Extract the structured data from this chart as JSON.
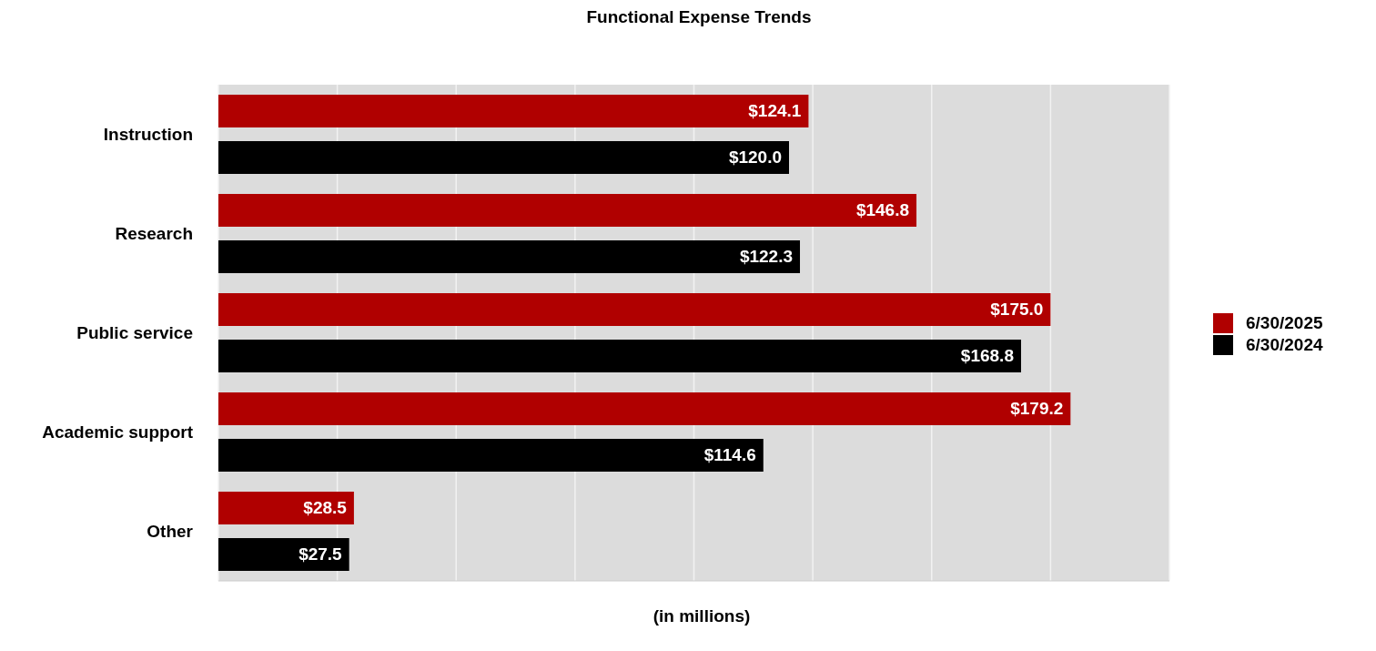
{
  "chart_data": {
    "type": "bar",
    "orientation": "horizontal",
    "title": "Functional Expense Trends",
    "xlabel": "(in millions)",
    "categories": [
      "Instruction",
      "Research",
      "Public service",
      "Academic support",
      "Other"
    ],
    "series": [
      {
        "name": "6/30/2025",
        "color": "#b00000",
        "values": [
          124.1,
          146.8,
          175.0,
          179.2,
          28.5
        ],
        "value_labels": [
          "$124.1",
          "$146.8",
          "$175.0",
          "$179.2",
          "$28.5"
        ]
      },
      {
        "name": "6/30/2024",
        "color": "#000000",
        "values": [
          120.0,
          122.3,
          168.8,
          114.6,
          27.5
        ],
        "value_labels": [
          "$120.0",
          "$122.3",
          "$168.8",
          "$114.6",
          "$27.5"
        ]
      }
    ],
    "xlim": [
      0,
      200
    ],
    "grid": "x",
    "legend": "right",
    "tick_labels": "y"
  }
}
